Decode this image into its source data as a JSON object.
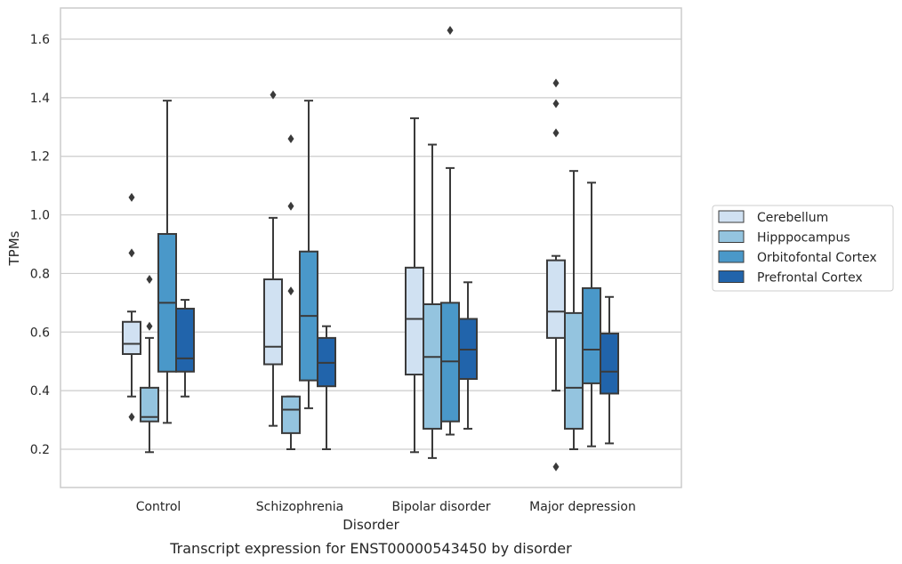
{
  "chart_data": {
    "type": "box",
    "xlabel": "Disorder",
    "ylabel": "TPMs",
    "caption": "Transcript expression for ENST00000543450 by disorder",
    "ylim": [
      0.07,
      1.7
    ],
    "yticks": [
      "0.2",
      "0.4",
      "0.6",
      "0.8",
      "1.0",
      "1.2",
      "1.4",
      "1.6"
    ],
    "grid": "horizontal",
    "legend_position": "right",
    "categories": [
      "Control",
      "Schizophrenia",
      "Bipolar disorder",
      "Major depression"
    ],
    "series": [
      {
        "name": "Cerebellum",
        "color": "#d0e1f2",
        "boxes": [
          {
            "whislo": 0.38,
            "q1": 0.525,
            "med": 0.56,
            "q3": 0.635,
            "whishi": 0.67,
            "fliers": [
              0.31,
              0.87,
              1.06
            ]
          },
          {
            "whislo": 0.28,
            "q1": 0.49,
            "med": 0.55,
            "q3": 0.78,
            "whishi": 0.99,
            "fliers": [
              1.41
            ]
          },
          {
            "whislo": 0.19,
            "q1": 0.455,
            "med": 0.645,
            "q3": 0.82,
            "whishi": 1.33,
            "fliers": []
          },
          {
            "whislo": 0.4,
            "q1": 0.58,
            "med": 0.67,
            "q3": 0.845,
            "whishi": 0.86,
            "fliers": [
              0.14,
              1.28,
              1.38,
              1.45
            ]
          }
        ]
      },
      {
        "name": "Hipppocampus",
        "color": "#94c4df",
        "boxes": [
          {
            "whislo": 0.19,
            "q1": 0.295,
            "med": 0.31,
            "q3": 0.41,
            "whishi": 0.58,
            "fliers": [
              0.62,
              0.78
            ]
          },
          {
            "whislo": 0.2,
            "q1": 0.255,
            "med": 0.335,
            "q3": 0.38,
            "whishi": 0.38,
            "fliers": [
              0.74,
              1.03,
              1.26
            ]
          },
          {
            "whislo": 0.17,
            "q1": 0.27,
            "med": 0.515,
            "q3": 0.695,
            "whishi": 1.24,
            "fliers": []
          },
          {
            "whislo": 0.2,
            "q1": 0.27,
            "med": 0.41,
            "q3": 0.665,
            "whishi": 1.15,
            "fliers": []
          }
        ]
      },
      {
        "name": "Orbitofontal Cortex",
        "color": "#4a98c9",
        "boxes": [
          {
            "whislo": 0.29,
            "q1": 0.465,
            "med": 0.7,
            "q3": 0.935,
            "whishi": 1.39,
            "fliers": []
          },
          {
            "whislo": 0.34,
            "q1": 0.435,
            "med": 0.655,
            "q3": 0.875,
            "whishi": 1.39,
            "fliers": []
          },
          {
            "whislo": 0.25,
            "q1": 0.295,
            "med": 0.5,
            "q3": 0.7,
            "whishi": 1.16,
            "fliers": [
              1.63
            ]
          },
          {
            "whislo": 0.21,
            "q1": 0.425,
            "med": 0.54,
            "q3": 0.75,
            "whishi": 1.11,
            "fliers": []
          }
        ]
      },
      {
        "name": "Prefrontal Cortex",
        "color": "#2164ab",
        "boxes": [
          {
            "whislo": 0.38,
            "q1": 0.465,
            "med": 0.51,
            "q3": 0.68,
            "whishi": 0.71,
            "fliers": []
          },
          {
            "whislo": 0.2,
            "q1": 0.415,
            "med": 0.495,
            "q3": 0.58,
            "whishi": 0.62,
            "fliers": []
          },
          {
            "whislo": 0.27,
            "q1": 0.44,
            "med": 0.54,
            "q3": 0.645,
            "whishi": 0.77,
            "fliers": []
          },
          {
            "whislo": 0.22,
            "q1": 0.39,
            "med": 0.465,
            "q3": 0.595,
            "whishi": 0.72,
            "fliers": []
          }
        ]
      }
    ]
  }
}
